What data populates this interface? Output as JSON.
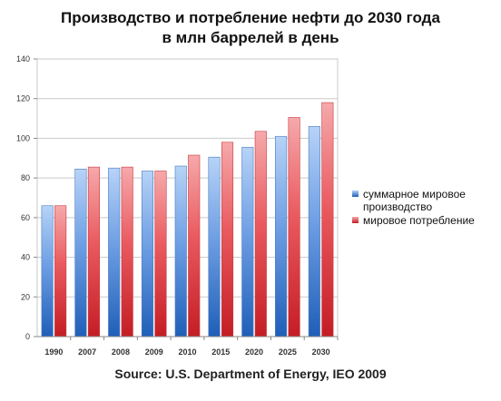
{
  "header": {
    "title_line1": "Производство и потребление нефти до 2030 года",
    "title_line2": "в млн баррелей в день"
  },
  "source": "Source: U.S. Department of Energy, IEO 2009",
  "chart_data": {
    "type": "bar",
    "title": "Производство и потребление нефти до 2030 года в млн баррелей в день",
    "xlabel": "",
    "ylabel": "",
    "ylim": [
      0,
      140
    ],
    "yticks": [
      0,
      20,
      40,
      60,
      80,
      100,
      120,
      140
    ],
    "grid": true,
    "legend_position": "right",
    "categories": [
      "1990",
      "2007",
      "2008",
      "2009",
      "2010",
      "2015",
      "2020",
      "2025",
      "2030"
    ],
    "series": [
      {
        "name": "суммарное мировое производство",
        "color": "#5b8fd6",
        "values": [
          66,
          84.5,
          85,
          83.5,
          86,
          90.5,
          95.5,
          101,
          106
        ]
      },
      {
        "name": "мировое потребление",
        "color": "#e0474c",
        "values": [
          66,
          85.5,
          85.5,
          83.5,
          91.5,
          98,
          103.5,
          110.5,
          118
        ]
      }
    ]
  }
}
